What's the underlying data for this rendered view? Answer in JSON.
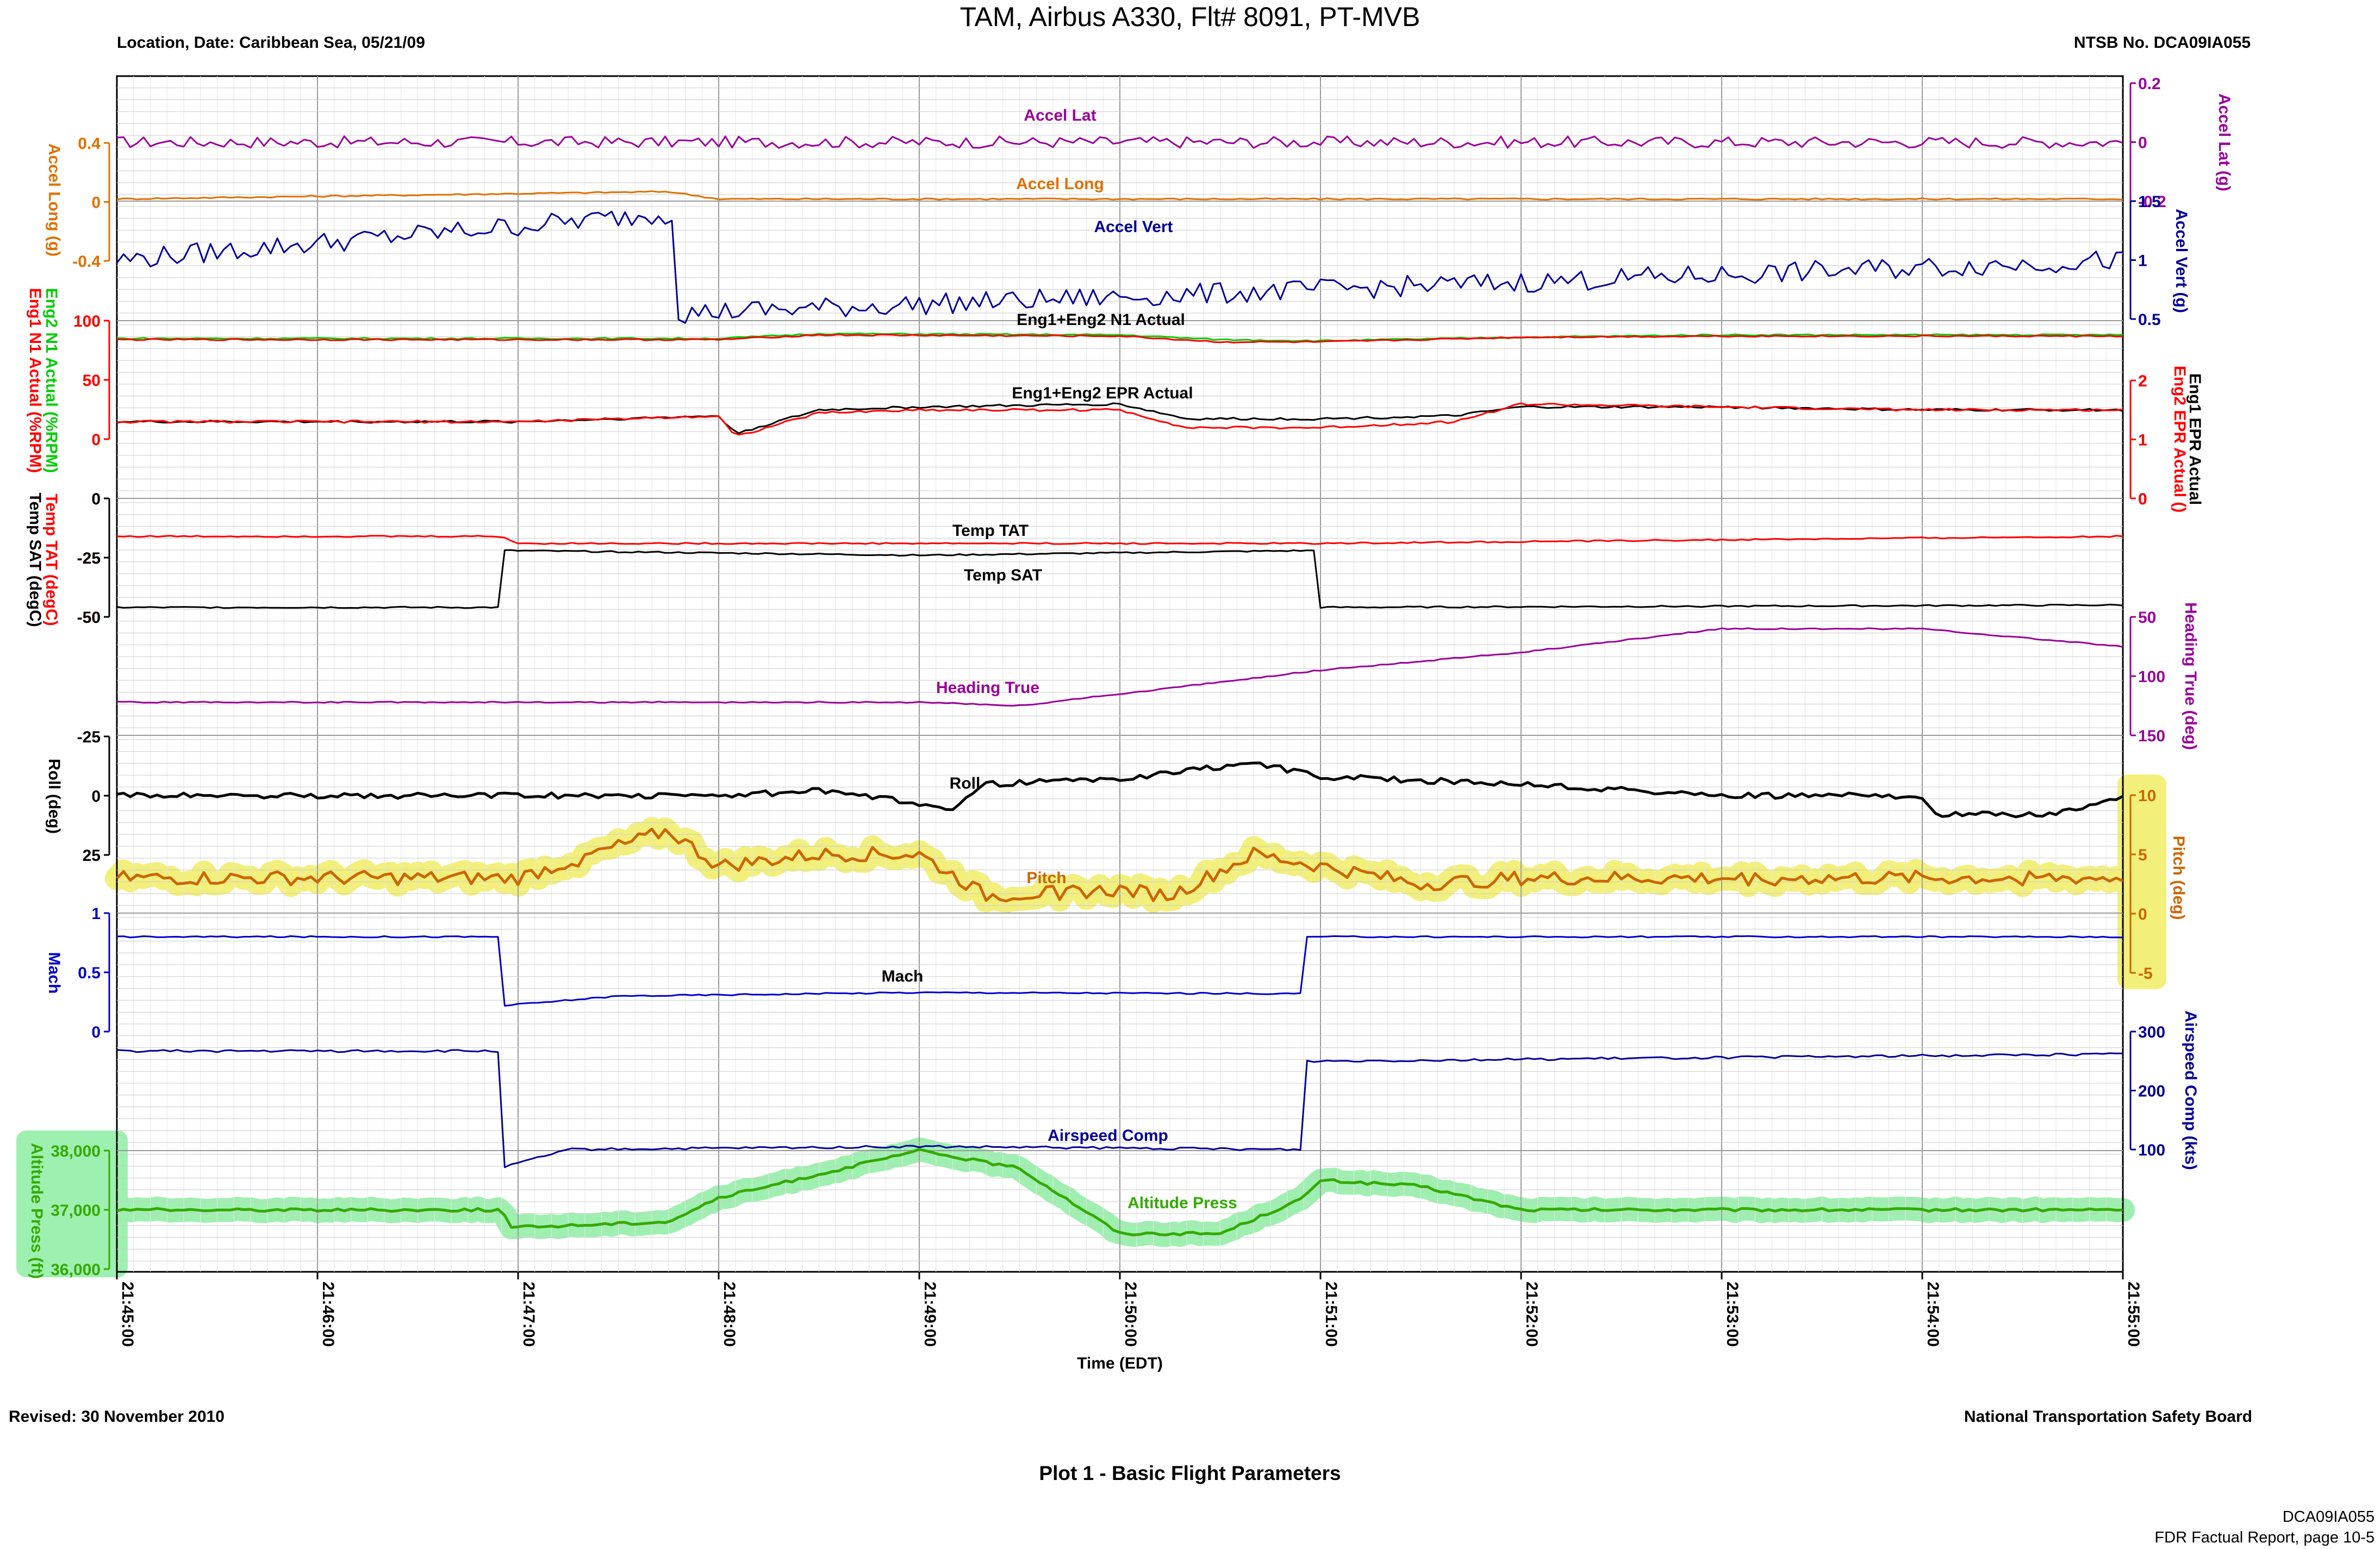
{
  "header": {
    "title": "TAM, Airbus A330, Flt# 8091, PT-MVB",
    "location": "Location, Date: Caribbean Sea, 05/21/09",
    "ntsb_no": "NTSB No. DCA09IA055"
  },
  "footer": {
    "revised": "Revised: 30 November 2010",
    "board": "National Transportation Safety Board",
    "caption": "Plot 1 - Basic Flight Parameters",
    "report_id": "DCA09IA055",
    "report_page": "FDR Factual Report, page 10-5"
  },
  "colors": {
    "accel_lat": "#990099",
    "accel_long": "#E07000",
    "accel_vert": "#000099",
    "eng2_n1": "#00CC00",
    "eng1_n1": "#FF0000",
    "eng1_epr": "#000000",
    "eng2_epr": "#FF0000",
    "temp_tat": "#FF0000",
    "temp_sat": "#000000",
    "heading": "#990099",
    "roll": "#000000",
    "pitch": "#CC6600",
    "mach": "#0000CC",
    "airspeed": "#000099",
    "altitude": "#33AA00",
    "highlight_yellow": "#F2F07A",
    "highlight_green": "#9EF0B0"
  },
  "chart_data": {
    "type": "line",
    "xlabel": "Time (EDT)",
    "x_ticks": [
      "21:45:00",
      "21:46:00",
      "21:47:00",
      "21:48:00",
      "21:49:00",
      "21:50:00",
      "21:51:00",
      "21:52:00",
      "21:53:00",
      "21:54:00",
      "21:55:00"
    ],
    "xlim": [
      "21:45:00",
      "21:55:00"
    ],
    "grid": true,
    "series": [
      {
        "name": "Accel Lat",
        "axis_label": "Accel Lat (g)",
        "side": "right",
        "ticks": [
          -0.2,
          0.0,
          0.2
        ],
        "x": [
          "21:45:00",
          "21:50:00",
          "21:55:00"
        ],
        "values": [
          0.0,
          0.0,
          0.0
        ]
      },
      {
        "name": "Accel Long",
        "axis_label": "Accel Long (g)",
        "side": "left",
        "ticks": [
          -0.4,
          0.0,
          0.4
        ],
        "x": [
          "21:45:00",
          "21:47:45",
          "21:48:00",
          "21:55:00"
        ],
        "values": [
          0.02,
          0.07,
          0.02,
          0.02
        ]
      },
      {
        "name": "Accel Vert",
        "axis_label": "Accel Vert (g)",
        "side": "right",
        "ticks": [
          0.5,
          1.0,
          1.5
        ],
        "x": [
          "21:45:00",
          "21:47:46",
          "21:47:48",
          "21:55:00"
        ],
        "values": [
          1.0,
          1.4,
          0.55,
          1.0
        ]
      },
      {
        "name": "Eng2 N1 Actual",
        "axis_label": "Eng2 N1 Actual (%RPM)",
        "side": "left",
        "ticks": [
          0,
          50,
          100
        ],
        "x": [
          "21:45:00",
          "21:48:00",
          "21:48:30",
          "21:50:00",
          "21:50:30",
          "21:51:00",
          "21:52:00",
          "21:53:00",
          "21:54:00",
          "21:55:00"
        ],
        "values": [
          85,
          85,
          89,
          88,
          84,
          83,
          86,
          88,
          88,
          88
        ]
      },
      {
        "name": "Eng1 N1 Actual",
        "axis_label": "Eng1 N1 Actual (%RPM)",
        "side": "left",
        "ticks": [
          0,
          50,
          100
        ],
        "x": [
          "21:45:00",
          "21:48:00",
          "21:48:30",
          "21:50:00",
          "21:50:30",
          "21:51:00",
          "21:52:00",
          "21:53:00",
          "21:54:00",
          "21:55:00"
        ],
        "values": [
          84,
          84,
          88,
          87,
          82,
          82,
          86,
          87,
          87,
          87
        ]
      },
      {
        "name": "Eng1 EPR Actual",
        "axis_label": "Eng1 EPR Actual",
        "side": "right",
        "ticks": [
          0.0,
          1.0,
          2.0
        ],
        "x": [
          "21:45:00",
          "21:47:00",
          "21:48:00",
          "21:48:05",
          "21:48:30",
          "21:49:00",
          "21:50:00",
          "21:50:20",
          "21:51:00",
          "21:51:40",
          "21:52:00",
          "21:53:00",
          "21:54:00",
          "21:55:00"
        ],
        "values": [
          1.3,
          1.3,
          1.4,
          1.1,
          1.5,
          1.55,
          1.6,
          1.35,
          1.35,
          1.4,
          1.55,
          1.55,
          1.5,
          1.5
        ]
      },
      {
        "name": "Eng2 EPR Actual",
        "axis_label": "Eng2 EPR Actual ()",
        "side": "right",
        "ticks": [
          0.0,
          1.0,
          2.0
        ],
        "x": [
          "21:45:00",
          "21:47:00",
          "21:48:00",
          "21:48:05",
          "21:48:30",
          "21:49:00",
          "21:50:00",
          "21:50:20",
          "21:51:00",
          "21:51:40",
          "21:52:00",
          "21:53:00",
          "21:54:00",
          "21:55:00"
        ],
        "values": [
          1.3,
          1.3,
          1.4,
          1.05,
          1.45,
          1.5,
          1.5,
          1.2,
          1.2,
          1.3,
          1.6,
          1.55,
          1.5,
          1.5
        ]
      },
      {
        "name": "Temp TAT",
        "axis_label": "Temp TAT (degC)",
        "side": "left",
        "ticks": [
          0,
          -25,
          -50
        ],
        "x": [
          "21:45:00",
          "21:46:55",
          "21:47:00",
          "21:51:00",
          "21:55:00"
        ],
        "values": [
          -16,
          -16,
          -19,
          -19,
          -16
        ]
      },
      {
        "name": "Temp SAT",
        "axis_label": "Temp SAT (degC)",
        "side": "left",
        "ticks": [
          0,
          -25,
          -50
        ],
        "x": [
          "21:45:00",
          "21:46:55",
          "21:46:56",
          "21:49:00",
          "21:50:58",
          "21:50:59",
          "21:55:00"
        ],
        "values": [
          -46,
          -46,
          -22,
          -24,
          -22,
          -46,
          -45
        ]
      },
      {
        "name": "Heading True",
        "axis_label": "Heading True (deg)",
        "side": "right",
        "ticks": [
          50,
          100,
          150
        ],
        "x": [
          "21:45:00",
          "21:49:00",
          "21:49:30",
          "21:50:00",
          "21:51:00",
          "21:52:00",
          "21:53:00",
          "21:54:00",
          "21:55:00"
        ],
        "values": [
          122,
          122,
          125,
          115,
          95,
          80,
          60,
          60,
          75
        ]
      },
      {
        "name": "Roll",
        "axis_label": "Roll (deg)",
        "side": "left",
        "ticks": [
          -25,
          0,
          25
        ],
        "x": [
          "21:45:00",
          "21:48:00",
          "21:48:30",
          "21:49:10",
          "21:49:20",
          "21:50:00",
          "21:50:40",
          "21:51:00",
          "21:52:00",
          "21:53:00",
          "21:54:00",
          "21:54:05",
          "21:54:40",
          "21:55:00"
        ],
        "values": [
          0,
          0,
          -2,
          5,
          -5,
          -7,
          -14,
          -8,
          -5,
          0,
          0,
          8,
          8,
          0
        ]
      },
      {
        "name": "Pitch",
        "axis_label": "Pitch (deg)",
        "side": "right",
        "ticks": [
          -5,
          0,
          5,
          10
        ],
        "x": [
          "21:45:00",
          "21:47:00",
          "21:47:45",
          "21:48:00",
          "21:48:30",
          "21:49:00",
          "21:49:20",
          "21:50:00",
          "21:50:15",
          "21:50:40",
          "21:51:00",
          "21:51:30",
          "21:52:00",
          "21:53:00",
          "21:55:00"
        ],
        "values": [
          3,
          3,
          7,
          4,
          5,
          5,
          1.5,
          2,
          1.5,
          5,
          4,
          2.5,
          3,
          3,
          3
        ]
      },
      {
        "name": "Mach",
        "axis_label": "Mach",
        "side": "left",
        "ticks": [
          0.0,
          0.5,
          1.0
        ],
        "x": [
          "21:45:00",
          "21:46:55",
          "21:46:56",
          "21:47:30",
          "21:49:00",
          "21:50:55",
          "21:50:56",
          "21:55:00"
        ],
        "values": [
          0.8,
          0.8,
          0.22,
          0.3,
          0.33,
          0.32,
          0.8,
          0.8
        ]
      },
      {
        "name": "Airspeed Comp",
        "axis_label": "Airspeed Comp (kts)",
        "side": "right",
        "ticks": [
          100,
          200,
          300
        ],
        "x": [
          "21:45:00",
          "21:46:55",
          "21:46:56",
          "21:47:15",
          "21:49:00",
          "21:50:55",
          "21:50:56",
          "21:51:00",
          "21:55:00"
        ],
        "values": [
          267,
          267,
          70,
          100,
          105,
          100,
          250,
          250,
          262
        ]
      },
      {
        "name": "Altitude Press",
        "axis_label": "Altitude Press (ft)",
        "side": "left",
        "ticks": [
          36000,
          37000,
          38000
        ],
        "x": [
          "21:45:00",
          "21:46:55",
          "21:46:58",
          "21:47:45",
          "21:48:00",
          "21:48:45",
          "21:49:00",
          "21:49:30",
          "21:50:00",
          "21:50:30",
          "21:50:55",
          "21:51:00",
          "21:51:30",
          "21:52:00",
          "21:55:00"
        ],
        "values": [
          37000,
          37000,
          36700,
          36800,
          37200,
          37800,
          38000,
          37700,
          36600,
          36600,
          37200,
          37500,
          37400,
          37000,
          37000
        ]
      }
    ]
  }
}
